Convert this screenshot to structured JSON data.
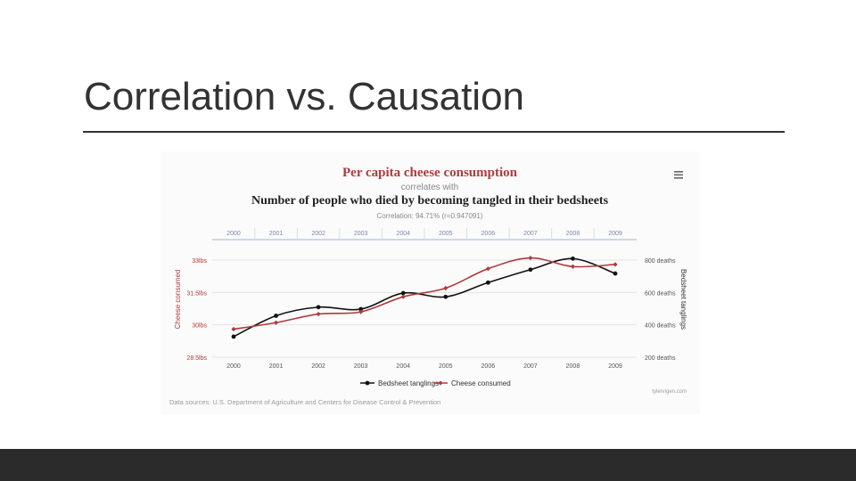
{
  "slide": {
    "title": "Correlation vs. Causation"
  },
  "chart_data": {
    "type": "line",
    "title": "Per capita cheese consumption",
    "connector": "correlates with",
    "subtitle": "Number of people who died by becoming tangled in their bedsheets",
    "correlation": "Correlation: 94.71% (r=0.947091)",
    "categories": [
      "2000",
      "2001",
      "2002",
      "2003",
      "2004",
      "2005",
      "2006",
      "2007",
      "2008",
      "2009"
    ],
    "ylabel_left": "Cheese consumed",
    "ylabel_right": "Bedsheet tanglings",
    "left_ticks": [
      "28.5lbs",
      "30lbs",
      "31.5lbs",
      "33lbs"
    ],
    "left_ylim": [
      28.5,
      33
    ],
    "right_ticks": [
      "200 deaths",
      "400 deaths",
      "600 deaths",
      "800 deaths"
    ],
    "right_ylim": [
      200,
      800
    ],
    "series": [
      {
        "name": "Bedsheet tanglings",
        "axis": "right",
        "color": "#111111",
        "values": [
          327,
          456,
          509,
          497,
          596,
          573,
          661,
          741,
          809,
          717
        ]
      },
      {
        "name": "Cheese consumed",
        "axis": "left",
        "color": "#b03a3e",
        "values": [
          29.8,
          30.1,
          30.5,
          30.6,
          31.3,
          31.7,
          32.6,
          33.1,
          32.7,
          32.8
        ]
      }
    ],
    "footer": "Data sources: U.S. Department of Agriculture and Centers for Disease Control & Prevention",
    "credit": "tylervigen.com",
    "menu_icon": "hamburger-menu-icon"
  }
}
